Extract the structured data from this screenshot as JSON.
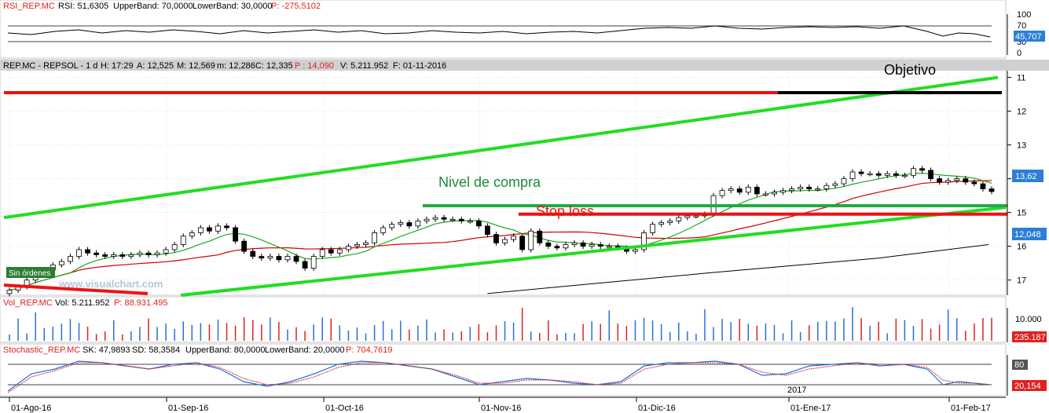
{
  "colors": {
    "background": "#ffffff",
    "panel_border": "#c8c8c8",
    "grid": "#c0c0c0",
    "header_bg": "#d0d0d0",
    "up_candle": "#ffffff",
    "down_candle": "#000000",
    "ma_green": "#1fa81f",
    "ma_red": "#d00000",
    "ma_black": "#000000",
    "channel_green": "#22dd22",
    "buy_level": "#22aa44",
    "stop_red": "#ee1111",
    "target_black": "#000000",
    "rsi_line": "#000000",
    "vol_blue": "#2a6fd8",
    "vol_red": "#dd2222",
    "stoch_blue": "#1e6fe0",
    "stoch_red": "#dd2222",
    "label_box": "#2b7fd6",
    "sin_ordenes_bg": "#2e7d32"
  },
  "rsi_panel": {
    "header": {
      "name": "RSI_REP.MC",
      "rsi": "RSI: 51,6305",
      "upper": "UpperBand: 70,0000",
      "lower": "LowerBand: 30,0000",
      "p": "P: -275,5102"
    },
    "axis_labels": [
      "100",
      "70",
      "30",
      "0"
    ],
    "value_box": "45,707"
  },
  "price_panel": {
    "header": {
      "name": "REP.MC - REPSOL - 1 d",
      "h": "H: 17:29",
      "a": "A: 12,525",
      "m": "M: 12,569",
      "mn": "m: 12,286",
      "c": "C: 12,335",
      "p": "P : 14,090",
      "v": "V: 5.211.952",
      "f": "F: 01-11-2016"
    },
    "axis_labels": [
      "17",
      "16",
      "15",
      "14",
      "13",
      "12",
      "11"
    ],
    "value_box_1": "13,62",
    "value_box_2": "12,048",
    "annotations": {
      "objetivo": "Objetivo",
      "nivel_compra": "Nivel de compra",
      "stop_loss": "Stop loss",
      "sin_ordenes": "Sin órdenes",
      "watermark": "www.visualchart.com"
    }
  },
  "volume_panel": {
    "header": {
      "name": "Vol_REP.MC",
      "vol": "Vol: 5.211.952",
      "p": "P: 88.931.495"
    },
    "axis_label": "10.000",
    "value_box": "235.187"
  },
  "stoch_panel": {
    "header": {
      "name": "Stochastic_REP.MC",
      "sk": "SK: 47,9893",
      "sd": "SD: 58,3584",
      "upper": "UpperBand: 80,0000",
      "lower": "LowerBand: 20,0000",
      "p": "P: 704,7619"
    },
    "axis_label": "80",
    "value_box": "20,154",
    "year_label": "2017"
  },
  "x_axis": {
    "labels": [
      "01-Ago-16",
      "01-Sep-16",
      "01-Oct-16",
      "01-Nov-16",
      "01-Dic-16",
      "01-Ene-17",
      "01-Feb-17"
    ]
  },
  "chart_data": {
    "type": "candlestick",
    "title": "REP.MC - REPSOL - 1 d",
    "date_range": [
      "2016-08-01",
      "2017-02-10"
    ],
    "x_tick_labels": [
      "01-Ago-16",
      "01-Sep-16",
      "01-Oct-16",
      "01-Nov-16",
      "01-Dic-16",
      "01-Ene-17",
      "01-Feb-17"
    ],
    "ylim": [
      10.55,
      17.2
    ],
    "y_ticks": [
      11,
      12,
      13,
      14,
      15,
      16,
      17
    ],
    "close": [
      10.7,
      10.8,
      11.0,
      11.2,
      11.3,
      11.45,
      11.55,
      11.7,
      11.9,
      11.8,
      11.75,
      11.7,
      11.75,
      11.7,
      11.75,
      11.8,
      11.75,
      11.8,
      11.9,
      12.05,
      12.3,
      12.4,
      12.55,
      12.45,
      12.6,
      12.55,
      12.15,
      11.85,
      11.7,
      11.65,
      11.7,
      11.6,
      11.7,
      11.55,
      11.35,
      11.7,
      11.9,
      11.8,
      11.9,
      12.0,
      12.05,
      12.1,
      12.4,
      12.55,
      12.65,
      12.7,
      12.6,
      12.75,
      12.8,
      12.85,
      12.8,
      12.8,
      12.75,
      12.75,
      12.6,
      12.35,
      12.1,
      12.2,
      12.3,
      11.9,
      12.45,
      12.1,
      12.0,
      11.95,
      12.05,
      12.1,
      12.0,
      12.05,
      12.0,
      12.0,
      11.95,
      11.85,
      11.9,
      12.4,
      12.65,
      12.7,
      12.75,
      12.85,
      12.9,
      12.9,
      12.95,
      13.5,
      13.65,
      13.7,
      13.6,
      13.75,
      13.55,
      13.55,
      13.6,
      13.65,
      13.7,
      13.75,
      13.7,
      13.7,
      13.8,
      13.85,
      14.0,
      14.2,
      14.15,
      14.15,
      14.1,
      14.15,
      14.1,
      14.1,
      14.3,
      14.25,
      14.0,
      13.9,
      13.95,
      14.0,
      13.9,
      13.85,
      13.7,
      13.62
    ],
    "series": [
      {
        "name": "RSI",
        "last": 45.707,
        "bands": [
          30,
          70
        ]
      },
      {
        "name": "Vol",
        "last": 5211952
      },
      {
        "name": "SK",
        "last": 47.9893
      },
      {
        "name": "SD",
        "last": 58.3584
      }
    ],
    "levels": {
      "objetivo": 16.55,
      "nivel_de_compra": 13.2,
      "stop_loss": 12.95
    },
    "grid": true
  }
}
